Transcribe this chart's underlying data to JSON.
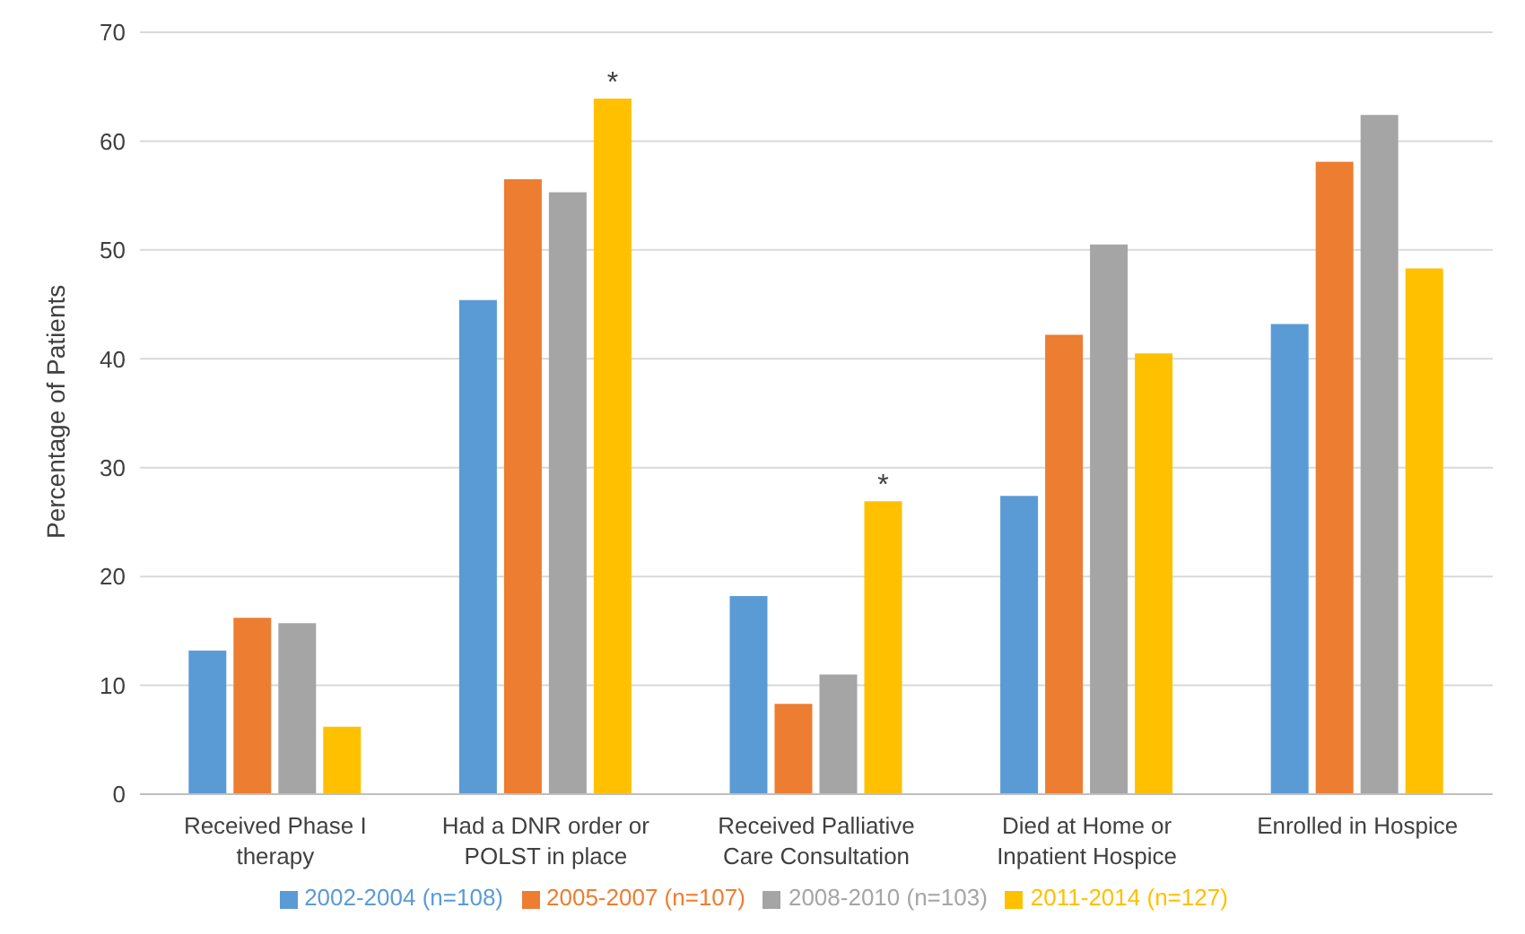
{
  "chart_data": {
    "type": "bar",
    "ylabel": "Percentage of Patients",
    "categories": [
      "Received Phase I therapy",
      "Had a DNR order or POLST in place",
      "Received Palliative Care Consultation",
      "Died at Home or Inpatient Hospice",
      "Enrolled in Hospice"
    ],
    "series": [
      {
        "name": "2002-2004 (n=108)",
        "color": "#5b9bd5",
        "values": [
          13.2,
          45.4,
          18.2,
          27.4,
          43.2
        ]
      },
      {
        "name": "2005-2007 (n=107)",
        "color": "#ed7d31",
        "values": [
          16.2,
          56.5,
          8.3,
          42.2,
          58.1
        ]
      },
      {
        "name": "2008-2010 (n=103)",
        "color": "#a5a5a5",
        "values": [
          15.7,
          55.3,
          11.0,
          50.5,
          62.4
        ]
      },
      {
        "name": "2011-2014 (n=127)",
        "color": "#ffc000",
        "values": [
          6.2,
          63.9,
          26.9,
          40.5,
          48.3
        ],
        "value_labels": [
          null,
          "*",
          "*",
          null,
          null
        ]
      }
    ],
    "ylim": [
      0,
      70
    ],
    "yticks": [
      0,
      10,
      20,
      30,
      40,
      50,
      60,
      70
    ],
    "grid": "y",
    "legend": "bottom"
  }
}
